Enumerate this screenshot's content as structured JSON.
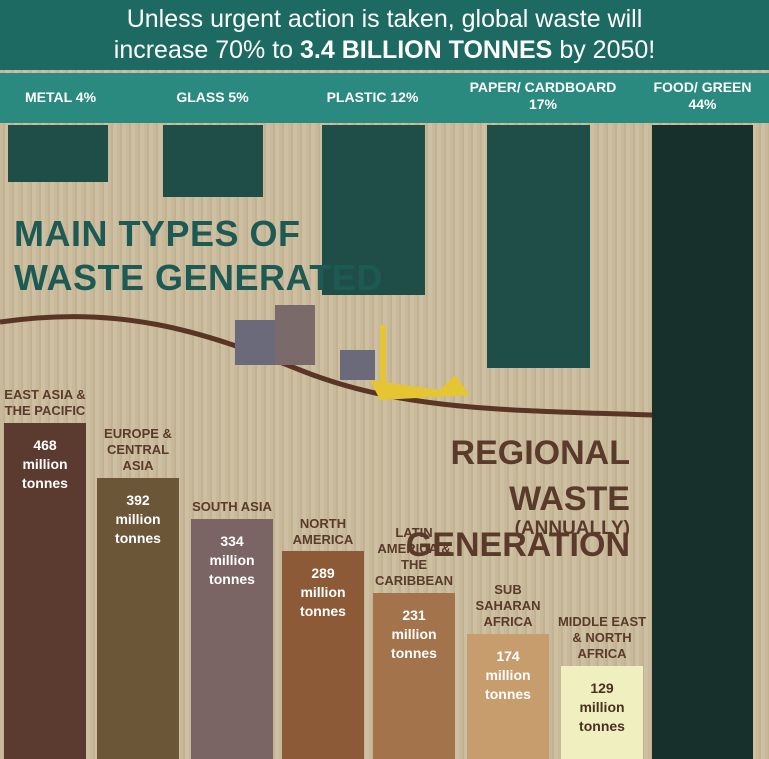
{
  "header": {
    "line1": "Unless urgent action is taken, global waste will",
    "line2_start": "increase 70% to",
    "line2_bold": "3.4 BILLION TONNES",
    "line2_end": "by 2050!"
  },
  "waste_types": {
    "title_line1": "MAIN TYPES OF",
    "title_line2": "WASTE GENERATED",
    "items": [
      "METAL 4%",
      "GLASS 5%",
      "PLASTIC 12%",
      "PAPER/ CARDBOARD 17%",
      "FOOD/ GREEN 44%"
    ]
  },
  "chart_data": {
    "type": "bar",
    "title": "REGIONAL WASTE GENERATION",
    "subtitle": "(ANNUALLY)",
    "categories": [
      "EAST ASIA & THE PACIFIC",
      "EUROPE & CENTRAL ASIA",
      "SOUTH ASIA",
      "NORTH AMERICA",
      "LATIN AMERICA & THE CARIBBEAN",
      "SUB SAHARAN AFRICA",
      "MIDDLE EAST & NORTH AFRICA"
    ],
    "values": [
      468,
      392,
      334,
      289,
      231,
      174,
      129
    ],
    "value_unit": "million tonnes",
    "colors": [
      "#5b3a2f",
      "#6b5638",
      "#7b6464",
      "#8c5a36",
      "#a3734b",
      "#c79d6e",
      "#efefbf"
    ]
  }
}
